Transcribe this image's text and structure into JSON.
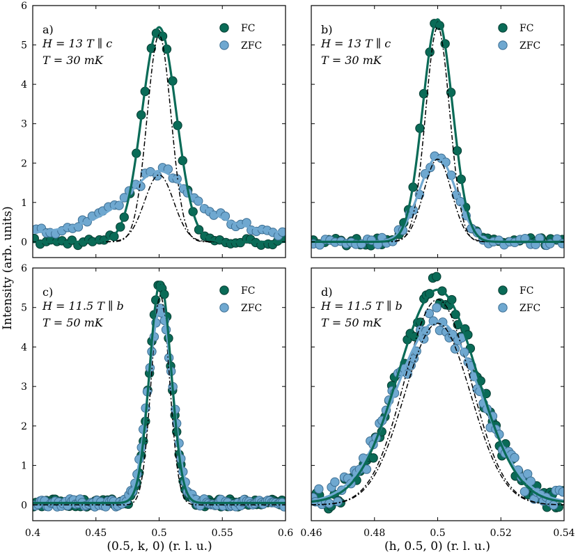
{
  "colors": {
    "fc": "#0a6b57",
    "fc_edge": "#063d32",
    "zfc": "#6fa8d0",
    "zfc_edge": "#3d6f93",
    "fit_fc": "#0a6b57",
    "fit_zfc": "#6fa8d0",
    "ref": "#000000"
  },
  "figure": {
    "ylabel": "Intensity (arb. units)",
    "xlabel_left": "(0.5, k, 0)  (r. l. u.)",
    "xlabel_right": "(h, 0.5, 0)  (r. l. u.)"
  },
  "chart_data": [
    {
      "type": "scatter",
      "panel": "a",
      "label": "a)",
      "field_line": "H = 13 T ∥ c",
      "temp_line": "T = 30 mK",
      "xlim": [
        0.4,
        0.6
      ],
      "ylim": [
        -0.4,
        6
      ],
      "xticks": [
        "",
        "",
        "",
        "",
        ""
      ],
      "yticks": [
        "0",
        "1",
        "2",
        "3",
        "4",
        "5",
        "6"
      ],
      "legend": [
        "FC",
        "ZFC"
      ],
      "series": [
        {
          "name": "FC",
          "fit": {
            "A": 5.45,
            "x0": 0.5,
            "sigma": 0.0135,
            "bg": 0
          }
        },
        {
          "name": "ZFC",
          "fit": {
            "A": 1.75,
            "x0": 0.5,
            "sigma": 0.034,
            "bg": 0.05,
            "shape": "lorentz"
          }
        },
        {
          "name": "reference-dashdot",
          "curves": [
            {
              "A": 5.25,
              "x0": 0.5,
              "sigma": 0.0095
            },
            {
              "A": 1.7,
              "x0": 0.5,
              "sigma": 0.0115
            }
          ]
        }
      ]
    },
    {
      "type": "scatter",
      "panel": "b",
      "label": "b)",
      "field_line": "H = 13 T ∥ c",
      "temp_line": "T = 30 mK",
      "xlim": [
        0.4,
        0.6
      ],
      "ylim": [
        -0.4,
        6
      ],
      "xticks": [
        "",
        "",
        "",
        "",
        ""
      ],
      "yticks": [
        "",
        "",
        "",
        "",
        "",
        "",
        ""
      ],
      "legend": [
        "FC",
        "ZFC"
      ],
      "series": [
        {
          "name": "FC",
          "fit": {
            "A": 5.65,
            "x0": 0.5,
            "sigma": 0.0118,
            "bg": 0
          }
        },
        {
          "name": "ZFC",
          "fit": {
            "A": 2.15,
            "x0": 0.5,
            "sigma": 0.0145,
            "bg": 0
          }
        },
        {
          "name": "reference-dashdot",
          "curves": [
            {
              "A": 5.45,
              "x0": 0.5,
              "sigma": 0.0095
            },
            {
              "A": 2.1,
              "x0": 0.5,
              "sigma": 0.011
            }
          ]
        }
      ]
    },
    {
      "type": "scatter",
      "panel": "c",
      "label": "c)",
      "field_line": "H = 11.5 T ∥ b",
      "temp_line": "T = 50 mK",
      "xlim": [
        0.4,
        0.6
      ],
      "ylim": [
        -0.4,
        6
      ],
      "xticks": [
        "0.4",
        "0.45",
        "0.5",
        "0.55",
        "0.6"
      ],
      "yticks": [
        "0",
        "1",
        "2",
        "3",
        "4",
        "5",
        "6"
      ],
      "legend": [
        "FC",
        "ZFC"
      ],
      "series": [
        {
          "name": "FC",
          "fit": {
            "A": 5.6,
            "x0": 0.501,
            "sigma": 0.0085,
            "bg": 0.05
          }
        },
        {
          "name": "ZFC",
          "fit": {
            "A": 4.9,
            "x0": 0.501,
            "sigma": 0.0095,
            "bg": 0.05
          }
        },
        {
          "name": "reference-dashdot",
          "curves": [
            {
              "A": 5.3,
              "x0": 0.501,
              "sigma": 0.0072
            }
          ]
        }
      ]
    },
    {
      "type": "scatter",
      "panel": "d",
      "label": "d)",
      "field_line": "H = 11.5 T ∥ b",
      "temp_line": "T = 50 mK",
      "xlim": [
        0.46,
        0.54
      ],
      "ylim": [
        -0.4,
        6
      ],
      "xticks": [
        "0.46",
        "0.48",
        "0.5",
        "0.52",
        "0.54"
      ],
      "yticks": [
        "",
        "",
        "",
        "",
        "",
        "",
        ""
      ],
      "legend": [
        "FC",
        "ZFC"
      ],
      "series": [
        {
          "name": "FC",
          "fit": {
            "A": 5.4,
            "x0": 0.5,
            "sigma": 0.0125,
            "bg": 0.05
          }
        },
        {
          "name": "ZFC",
          "fit": {
            "A": 4.6,
            "x0": 0.5,
            "sigma": 0.0135,
            "bg": 0.05
          }
        },
        {
          "name": "reference-dashdot",
          "curves": [
            {
              "A": 5.2,
              "x0": 0.5,
              "sigma": 0.0105
            },
            {
              "A": 4.6,
              "x0": 0.5,
              "sigma": 0.0105
            }
          ]
        }
      ]
    }
  ]
}
